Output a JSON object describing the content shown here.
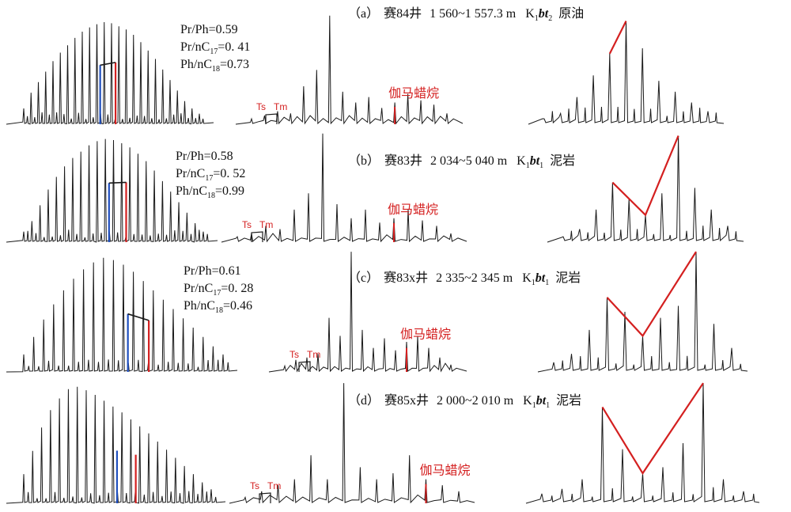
{
  "figure": {
    "labels": {
      "ts": "Ts",
      "tm": "Tm",
      "gammacerane": "伽马蜡烷"
    },
    "colors": {
      "trace": "#1a1a1a",
      "pr": "#1f4fbf",
      "ph": "#d42020",
      "marker": "#d42020",
      "text": "#111111"
    }
  },
  "chart_data": [
    {
      "type": "line",
      "panel": "a",
      "title": "(a) 赛84井 1 560~1 557.3 m K1bt2 原油",
      "caption": {
        "paren": "（a）",
        "well": "赛84井",
        "depth": "1 560~1 557.3 m",
        "fm_letter": "K",
        "fm_sub": "1",
        "fm_italic": "bt",
        "fm_sub2": "2",
        "lithology": "原油"
      },
      "ratios": {
        "pr_ph_label": "Pr/Ph=0.59",
        "pr_nc17_prefix": "Pr/nC",
        "pr_nc17_sub": "17",
        "pr_nc17_value": "=0. 41",
        "ph_nc18_prefix": "Ph/nC",
        "ph_nc18_sub": "18",
        "ph_nc18_value": "=0.73"
      },
      "series": [
        {
          "values": [
            0.15,
            0.3,
            0.4,
            0.5,
            0.6,
            0.68,
            0.75,
            0.82,
            0.88,
            0.92,
            0.95,
            0.97,
            0.96,
            0.93,
            0.9,
            0.85,
            0.78,
            0.7,
            0.62,
            0.52,
            0.42,
            0.32,
            0.22,
            0.15,
            0.1
          ]
        },
        {
          "values": [
            0.05,
            0.08,
            0.12,
            0.1,
            0.35,
            0.5,
            1.0,
            0.3,
            0.2,
            0.25,
            0.15,
            0.2,
            0.28,
            0.22,
            0.18,
            0.1
          ]
        },
        {
          "values": [
            0.05,
            0.1,
            0.25,
            0.45,
            0.65,
            0.95,
            0.7,
            0.4,
            0.3,
            0.2,
            0.12
          ]
        }
      ]
    },
    {
      "type": "line",
      "panel": "b",
      "title": "(b) 赛83井 2 034~5 040 m K1bt1 泥岩",
      "caption": {
        "paren": "（b）",
        "well": "赛83井",
        "depth": "2 034~5 040 m",
        "fm_letter": "K",
        "fm_sub": "1",
        "fm_italic": "bt",
        "fm_sub2": "1",
        "lithology": "泥岩"
      },
      "ratios": {
        "pr_ph_label": "Pr/Ph=0.58",
        "pr_nc17_prefix": "Pr/nC",
        "pr_nc17_sub": "17",
        "pr_nc17_value": "=0. 52",
        "ph_nc18_prefix": "Ph/nC",
        "ph_nc18_sub": "18",
        "ph_nc18_value": "=0.99"
      },
      "series": [
        {
          "values": [
            0.1,
            0.2,
            0.35,
            0.5,
            0.62,
            0.72,
            0.8,
            0.86,
            0.92,
            0.96,
            0.98,
            0.97,
            0.94,
            0.9,
            0.84,
            0.77,
            0.68,
            0.58,
            0.48,
            0.38,
            0.28,
            0.18,
            0.1
          ]
        },
        {
          "values": [
            0.05,
            0.08,
            0.15,
            0.12,
            0.3,
            0.45,
            1.0,
            0.35,
            0.22,
            0.3,
            0.18,
            0.22,
            0.3,
            0.2,
            0.15,
            0.08
          ]
        },
        {
          "values": [
            0.05,
            0.12,
            0.3,
            0.55,
            0.4,
            0.25,
            0.45,
            0.98,
            0.5,
            0.3,
            0.15
          ]
        }
      ]
    },
    {
      "type": "line",
      "panel": "c",
      "title": "(c) 赛83x井 2 335~2 345 m K1bt1 泥岩",
      "caption": {
        "paren": "（c）",
        "well": "赛83x井",
        "depth": "2 335~2 345 m",
        "fm_letter": "K",
        "fm_sub": "1",
        "fm_italic": "bt",
        "fm_sub2": "1",
        "lithology": "泥岩"
      },
      "ratios": {
        "pr_ph_label": "Pr/Ph=0.61",
        "pr_nc17_prefix": "Pr/nC",
        "pr_nc17_sub": "17",
        "pr_nc17_value": "=0. 28",
        "ph_nc18_prefix": "Ph/nC",
        "ph_nc18_sub": "18",
        "ph_nc18_value": "=0.46"
      },
      "series": [
        {
          "values": [
            0.15,
            0.3,
            0.45,
            0.58,
            0.7,
            0.8,
            0.88,
            0.94,
            0.98,
            0.96,
            0.92,
            0.86,
            0.78,
            0.7,
            0.62,
            0.54,
            0.46,
            0.38,
            0.3,
            0.22,
            0.15
          ]
        },
        {
          "values": [
            0.05,
            0.1,
            0.12,
            0.15,
            0.45,
            0.3,
            1.0,
            0.35,
            0.2,
            0.28,
            0.18,
            0.25,
            0.3,
            0.2,
            0.12,
            0.06
          ]
        },
        {
          "values": [
            0.08,
            0.15,
            0.35,
            0.62,
            0.5,
            0.3,
            0.45,
            0.55,
            1.0,
            0.4,
            0.2
          ]
        }
      ]
    },
    {
      "type": "line",
      "panel": "d",
      "title": "(d) 赛85x井 2 000~2 010 m K1bt1 泥岩",
      "caption": {
        "paren": "（d）",
        "well": "赛85x井",
        "depth": "2 000~2 010 m",
        "fm_letter": "K",
        "fm_sub": "1",
        "fm_italic": "bt",
        "fm_sub2": "1",
        "lithology": "泥岩"
      },
      "ratios": null,
      "series": [
        {
          "values": [
            0.25,
            0.45,
            0.65,
            0.8,
            0.9,
            0.98,
            1.0,
            0.97,
            0.93,
            0.88,
            0.83,
            0.78,
            0.72,
            0.66,
            0.6,
            0.53,
            0.46,
            0.39,
            0.32,
            0.25,
            0.18,
            0.12
          ]
        },
        {
          "values": [
            0.05,
            0.1,
            0.15,
            0.2,
            0.4,
            0.2,
            1.0,
            0.3,
            0.2,
            0.25,
            0.4,
            0.2,
            0.15,
            0.1
          ]
        },
        {
          "values": [
            0.08,
            0.12,
            0.2,
            0.8,
            0.45,
            0.25,
            0.3,
            0.5,
            1.0,
            0.2,
            0.1
          ]
        }
      ]
    }
  ]
}
